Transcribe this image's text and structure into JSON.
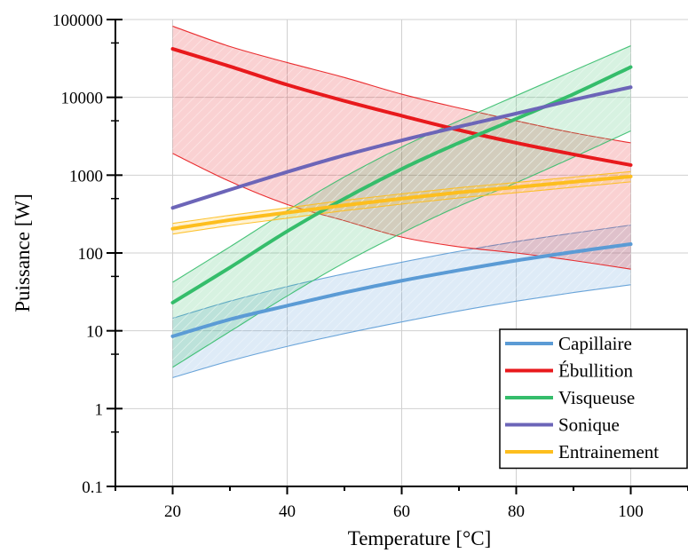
{
  "chart_data": {
    "type": "line",
    "title": "",
    "xlabel": "Temperature [°C]",
    "ylabel": "Puissance [W]",
    "xlim": [
      10,
      110
    ],
    "ylim": [
      0.1,
      100000
    ],
    "yscale": "log",
    "grid": true,
    "legend_position": "bottom-right",
    "x_ticks": [
      20,
      40,
      60,
      80,
      100
    ],
    "x_tick_labels": [
      "20",
      "40",
      "60",
      "80",
      "100"
    ],
    "y_ticks": [
      0.1,
      1,
      10,
      100,
      1000,
      10000,
      100000
    ],
    "y_tick_labels": [
      "0.1",
      "1",
      "10",
      "100",
      "1000",
      "10000",
      "100000"
    ],
    "x": [
      20,
      30,
      40,
      50,
      60,
      70,
      80,
      90,
      100
    ],
    "series": [
      {
        "name": "Capillaire",
        "color": "#5B9BD5",
        "values": [
          8.5,
          14,
          21,
          31,
          44,
          60,
          80,
          103,
          130
        ],
        "lower": [
          2.5,
          4.1,
          6.3,
          9.2,
          13,
          18,
          24,
          31,
          39
        ],
        "upper": [
          14.5,
          24,
          37,
          54,
          76,
          105,
          140,
          180,
          228
        ]
      },
      {
        "name": "Ébullition",
        "color": "#E8191C",
        "values": [
          42000,
          25000,
          14500,
          9000,
          5800,
          3800,
          2600,
          1850,
          1350
        ],
        "lower": [
          1900,
          830,
          420,
          260,
          160,
          120,
          100,
          80,
          62
        ],
        "upper": [
          82000,
          45000,
          28000,
          18000,
          11000,
          7300,
          5000,
          3500,
          2600
        ]
      },
      {
        "name": "Visqueuse",
        "color": "#35BD6B",
        "values": [
          23,
          65,
          190,
          500,
          1200,
          2600,
          5300,
          11000,
          24500
        ],
        "lower": [
          3.4,
          9.8,
          28,
          75,
          180,
          400,
          800,
          1700,
          3700
        ],
        "upper": [
          42,
          120,
          350,
          950,
          2300,
          5000,
          10500,
          22000,
          46000
        ]
      },
      {
        "name": "Sonique",
        "color": "#6C65B8",
        "values": [
          380,
          650,
          1100,
          1800,
          2800,
          4200,
          6200,
          9300,
          13500
        ]
      },
      {
        "name": "Entrainement",
        "color": "#FDBE1E",
        "values": [
          205,
          265,
          330,
          410,
          500,
          600,
          700,
          820,
          960
        ],
        "lower": [
          175,
          225,
          280,
          350,
          425,
          510,
          595,
          700,
          820
        ],
        "upper": [
          240,
          305,
          380,
          475,
          575,
          690,
          805,
          945,
          1110
        ]
      }
    ]
  }
}
